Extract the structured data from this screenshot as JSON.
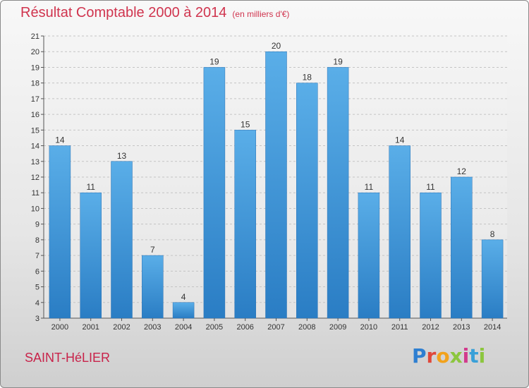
{
  "chart_data": {
    "type": "bar",
    "title": "Résultat Comptable 2000 à 2014",
    "unit_label": "(en milliers d'€)",
    "categories": [
      "2000",
      "2001",
      "2002",
      "2003",
      "2004",
      "2005",
      "2006",
      "2007",
      "2008",
      "2009",
      "2010",
      "2011",
      "2012",
      "2013",
      "2014"
    ],
    "values": [
      14,
      11,
      13,
      7,
      4,
      19,
      15,
      20,
      18,
      19,
      11,
      14,
      11,
      12,
      8
    ],
    "ylim": [
      3,
      21
    ],
    "yticks": [
      3,
      4,
      5,
      6,
      7,
      8,
      9,
      10,
      11,
      12,
      13,
      14,
      15,
      16,
      17,
      18,
      19,
      20,
      21
    ],
    "grid": true,
    "bar_color_top": "#5aaee8",
    "bar_color_bottom": "#2a7dc4"
  },
  "footer": {
    "commune": "SAINT-HéLIER"
  },
  "logo": {
    "letters": [
      "P",
      "r",
      "o",
      "x",
      "i",
      "t",
      "i"
    ]
  }
}
